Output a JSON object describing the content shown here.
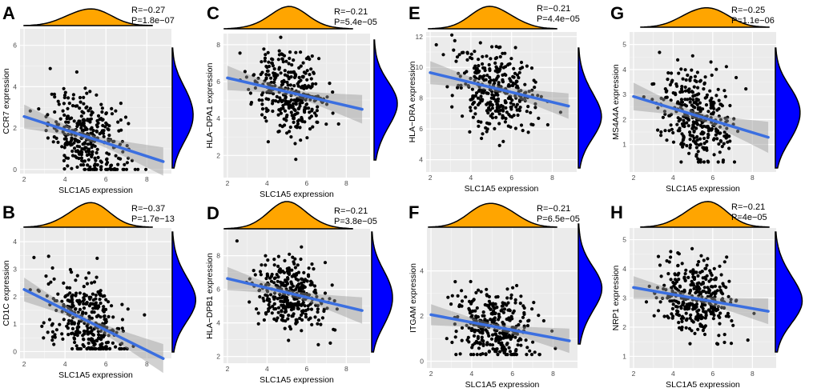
{
  "figure": {
    "description_label": "Correlation scatter plots of SLC1A5 expression vs immune marker expression",
    "colors": {
      "x_density": "#ffa500",
      "y_density": "#0000ff",
      "fit_line": "#3b6fe0",
      "band": "#999999",
      "panel_bg": "#ebebeb"
    }
  },
  "chart_data": [
    {
      "panel": "A",
      "type": "scatter",
      "xlabel": "SLC1A5 expression",
      "ylabel": "CCR7 expression",
      "r_text": "R=−0.27",
      "p_text": "P=1.8e−07",
      "xlim": [
        1.8,
        9.2
      ],
      "ylim": [
        -0.2,
        6.8
      ],
      "xticks": [
        2,
        4,
        6,
        8
      ],
      "yticks": [
        0,
        2,
        4,
        6
      ],
      "n_points": 340,
      "x_mean": 5.1,
      "x_sd": 0.95,
      "slope": -0.32,
      "intercept": 3.2,
      "resid_sd": 1.0,
      "y_floor": 0,
      "fit_range": [
        2.0,
        8.8
      ]
    },
    {
      "panel": "B",
      "type": "scatter",
      "xlabel": "SLC1A5 expression",
      "ylabel": "CD1C expression",
      "r_text": "R=−0.37",
      "p_text": "P=1.7e−13",
      "xlim": [
        1.8,
        9.2
      ],
      "ylim": [
        -0.25,
        4.5
      ],
      "xticks": [
        2,
        4,
        6,
        8
      ],
      "yticks": [
        0,
        1,
        2,
        3,
        4
      ],
      "n_points": 340,
      "x_mean": 5.0,
      "x_sd": 0.95,
      "slope": -0.37,
      "intercept": 3.0,
      "resid_sd": 0.75,
      "y_floor": 0.1,
      "fit_range": [
        2.0,
        8.8
      ]
    },
    {
      "panel": "C",
      "type": "scatter",
      "xlabel": "SLC1A5 expression",
      "ylabel": "HLA−DPA1 expression",
      "r_text": "R=−0.21",
      "p_text": "P=5.4e−05",
      "xlim": [
        1.8,
        9.2
      ],
      "ylim": [
        0.8,
        8.6
      ],
      "xticks": [
        2,
        4,
        6,
        8
      ],
      "yticks": [
        2,
        4,
        6,
        8
      ],
      "n_points": 340,
      "x_mean": 5.2,
      "x_sd": 0.95,
      "slope": -0.25,
      "intercept": 6.7,
      "resid_sd": 1.1,
      "y_floor": 1.2,
      "fit_range": [
        2.0,
        8.8
      ]
    },
    {
      "panel": "D",
      "type": "scatter",
      "xlabel": "SLC1A5 expression",
      "ylabel": "HLA−DPB1 expression",
      "r_text": "R=−0.21",
      "p_text": "P=3.8e−05",
      "xlim": [
        1.8,
        9.2
      ],
      "ylim": [
        1.6,
        9.6
      ],
      "xticks": [
        2,
        4,
        6,
        8
      ],
      "yticks": [
        2,
        4,
        6,
        8
      ],
      "n_points": 340,
      "x_mean": 5.2,
      "x_sd": 0.95,
      "slope": -0.28,
      "intercept": 7.2,
      "resid_sd": 1.1,
      "y_floor": 2.2,
      "fit_range": [
        2.0,
        8.8
      ]
    },
    {
      "panel": "E",
      "type": "scatter",
      "xlabel": "SLC1A5 expression",
      "ylabel": "HLA−DRA expression",
      "r_text": "R=−0.21",
      "p_text": "P=4.4e−05",
      "xlim": [
        1.8,
        9.2
      ],
      "ylim": [
        3.2,
        12.3
      ],
      "xticks": [
        2,
        4,
        6,
        8
      ],
      "yticks": [
        4,
        6,
        8,
        10,
        12
      ],
      "n_points": 340,
      "x_mean": 5.2,
      "x_sd": 0.95,
      "slope": -0.32,
      "intercept": 10.3,
      "resid_sd": 1.3,
      "y_floor": 4.0,
      "fit_range": [
        2.0,
        8.8
      ]
    },
    {
      "panel": "F",
      "type": "scatter",
      "xlabel": "SLC1A5 expression",
      "ylabel": "ITGAM expression",
      "r_text": "R=−0.21",
      "p_text": "P=6.5e−05",
      "xlim": [
        1.8,
        9.2
      ],
      "ylim": [
        -0.3,
        5.9
      ],
      "xticks": [
        2,
        4,
        6,
        8
      ],
      "yticks": [
        0,
        2,
        4
      ],
      "n_points": 340,
      "x_mean": 5.1,
      "x_sd": 0.95,
      "slope": -0.17,
      "intercept": 2.4,
      "resid_sd": 0.8,
      "y_floor": 0.3,
      "fit_range": [
        2.0,
        8.8
      ]
    },
    {
      "panel": "G",
      "type": "scatter",
      "xlabel": "SLC1A5 expression",
      "ylabel": "MS4A4A expression",
      "r_text": "R=−0.25",
      "p_text": "P=1.1e−06",
      "xlim": [
        1.8,
        9.2
      ],
      "ylim": [
        -0.1,
        5.5
      ],
      "xticks": [
        2,
        4,
        6,
        8
      ],
      "yticks": [
        1,
        2,
        3,
        4,
        5
      ],
      "n_points": 340,
      "x_mean": 5.2,
      "x_sd": 0.95,
      "slope": -0.24,
      "intercept": 3.4,
      "resid_sd": 0.9,
      "y_floor": 0.3,
      "fit_range": [
        2.0,
        8.8
      ]
    },
    {
      "panel": "H",
      "type": "scatter",
      "xlabel": "SLC1A5 expression",
      "ylabel": "NRP1 expression",
      "r_text": "R=−0.21",
      "p_text": "P=4e−05",
      "xlim": [
        1.8,
        9.2
      ],
      "ylim": [
        0.6,
        5.4
      ],
      "xticks": [
        2,
        4,
        6,
        8
      ],
      "yticks": [
        1,
        2,
        3,
        4,
        5
      ],
      "n_points": 340,
      "x_mean": 5.2,
      "x_sd": 0.95,
      "slope": -0.12,
      "intercept": 3.6,
      "resid_sd": 0.65,
      "y_floor": 1.0,
      "fit_range": [
        2.0,
        8.8
      ]
    }
  ]
}
